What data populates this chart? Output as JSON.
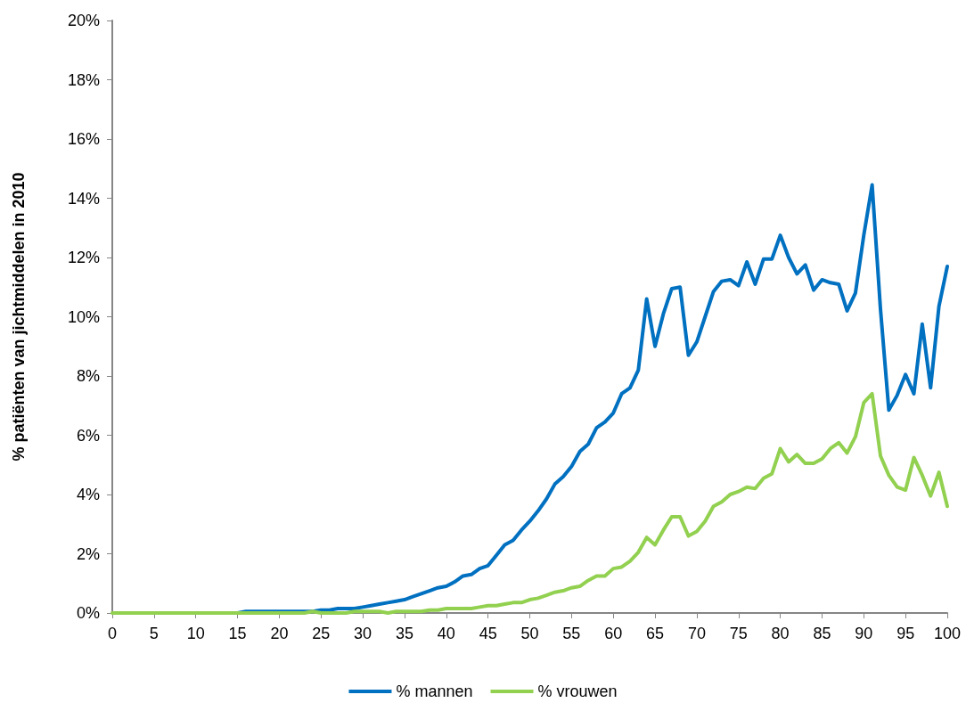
{
  "chart_data": {
    "type": "line",
    "ylabel": "% patiënten van jichtmiddelen in 2010",
    "x": [
      0,
      1,
      2,
      3,
      4,
      5,
      6,
      7,
      8,
      9,
      10,
      11,
      12,
      13,
      14,
      15,
      16,
      17,
      18,
      19,
      20,
      21,
      22,
      23,
      24,
      25,
      26,
      27,
      28,
      29,
      30,
      31,
      32,
      33,
      34,
      35,
      36,
      37,
      38,
      39,
      40,
      41,
      42,
      43,
      44,
      45,
      46,
      47,
      48,
      49,
      50,
      51,
      52,
      53,
      54,
      55,
      56,
      57,
      58,
      59,
      60,
      61,
      62,
      63,
      64,
      65,
      66,
      67,
      68,
      69,
      70,
      71,
      72,
      73,
      74,
      75,
      76,
      77,
      78,
      79,
      80,
      81,
      82,
      83,
      84,
      85,
      86,
      87,
      88,
      89,
      90,
      91,
      92,
      93,
      94,
      95,
      96,
      97,
      98,
      99,
      100
    ],
    "series": [
      {
        "name": "% mannen",
        "color": "#0070c0",
        "values": [
          null,
          null,
          null,
          null,
          null,
          null,
          null,
          null,
          null,
          null,
          null,
          null,
          null,
          null,
          0,
          0,
          0.05,
          0.05,
          0.05,
          0.05,
          0.05,
          0.05,
          0.05,
          0.05,
          0.05,
          0.1,
          0.1,
          0.15,
          0.15,
          0.15,
          0.2,
          0.25,
          0.3,
          0.35,
          0.4,
          0.45,
          0.55,
          0.65,
          0.75,
          0.85,
          0.9,
          1.05,
          1.25,
          1.3,
          1.5,
          1.6,
          1.95,
          2.3,
          2.45,
          2.8,
          3.1,
          3.45,
          3.85,
          4.35,
          4.6,
          4.95,
          5.45,
          5.7,
          6.25,
          6.45,
          6.75,
          7.4,
          7.6,
          8.2,
          10.6,
          9.0,
          10.1,
          10.95,
          11.0,
          8.7,
          9.15,
          10.0,
          10.85,
          11.2,
          11.25,
          11.05,
          11.85,
          11.1,
          11.95,
          11.95,
          12.75,
          12.0,
          11.45,
          11.75,
          10.9,
          11.25,
          11.15,
          11.1,
          10.2,
          10.8,
          12.75,
          14.45,
          10.25,
          6.85,
          7.35,
          8.05,
          7.4,
          9.75,
          7.6,
          10.35,
          11.7
        ]
      },
      {
        "name": "% vrouwen",
        "color": "#92d050",
        "values": [
          0,
          0,
          0,
          0,
          0,
          0,
          0,
          0,
          0,
          0,
          0,
          0,
          0,
          0,
          0,
          0,
          0,
          0,
          0,
          0,
          0,
          0,
          0,
          0,
          0.05,
          0,
          0,
          0,
          0,
          0.05,
          0.05,
          0.05,
          0.05,
          0,
          0.05,
          0.05,
          0.05,
          0.05,
          0.1,
          0.1,
          0.15,
          0.15,
          0.15,
          0.15,
          0.2,
          0.25,
          0.25,
          0.3,
          0.35,
          0.35,
          0.45,
          0.5,
          0.6,
          0.7,
          0.75,
          0.85,
          0.9,
          1.1,
          1.25,
          1.25,
          1.5,
          1.55,
          1.75,
          2.05,
          2.55,
          2.3,
          2.8,
          3.25,
          3.25,
          2.6,
          2.75,
          3.1,
          3.6,
          3.75,
          4.0,
          4.1,
          4.25,
          4.2,
          4.55,
          4.7,
          5.55,
          5.1,
          5.35,
          5.05,
          5.05,
          5.2,
          5.55,
          5.75,
          5.4,
          5.95,
          7.1,
          7.4,
          5.3,
          4.65,
          4.25,
          4.15,
          5.25,
          4.65,
          3.95,
          4.75,
          3.6
        ]
      }
    ],
    "xlim": [
      0,
      100
    ],
    "xticks": [
      0,
      5,
      10,
      15,
      20,
      25,
      30,
      35,
      40,
      45,
      50,
      55,
      60,
      65,
      70,
      75,
      80,
      85,
      90,
      95,
      100
    ],
    "ylim": [
      0,
      20
    ],
    "yticks": [
      {
        "value": 0,
        "label": "0%"
      },
      {
        "value": 2,
        "label": "2%"
      },
      {
        "value": 4,
        "label": "4%"
      },
      {
        "value": 6,
        "label": "6%"
      },
      {
        "value": 8,
        "label": "8%"
      },
      {
        "value": 10,
        "label": "10%"
      },
      {
        "value": 12,
        "label": "12%"
      },
      {
        "value": 14,
        "label": "14%"
      },
      {
        "value": 16,
        "label": "16%"
      },
      {
        "value": 18,
        "label": "18%"
      },
      {
        "value": 20,
        "label": "20%"
      }
    ],
    "grid": false,
    "legend": "bottom",
    "marker": "none",
    "line_style": "solid"
  }
}
